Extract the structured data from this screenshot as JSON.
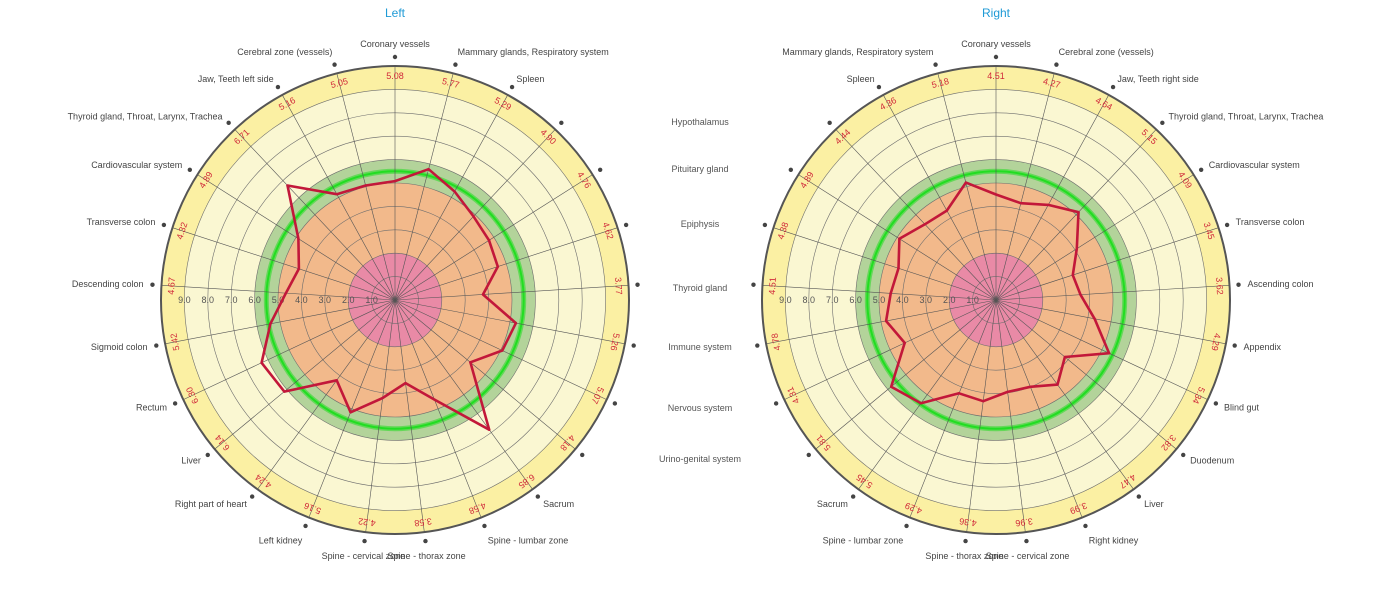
{
  "chart_data": [
    {
      "type": "polar",
      "title": "Left",
      "radial_range": [
        0,
        10
      ],
      "radial_ticks": [
        "1.0",
        "2.0",
        "3.0",
        "4.0",
        "5.0",
        "6.0",
        "7.0",
        "8.0",
        "9.0"
      ],
      "bands": [
        {
          "from": 0,
          "to": 2,
          "color": "#e98aa6"
        },
        {
          "from": 2,
          "to": 5,
          "color": "#f2b98b"
        },
        {
          "from": 5,
          "to": 6,
          "color": "#b3d39a"
        },
        {
          "from": 6,
          "to": 9,
          "color": "#faf7d2"
        },
        {
          "from": 9,
          "to": 10,
          "color": "#fbf0a3"
        }
      ],
      "reference_circle": {
        "value": 5.5,
        "color": "#22dd22"
      },
      "series": [
        {
          "color": "#c2183a",
          "categories": [
            "Coronary vessels",
            "Mammary glands, Respiratory system",
            "Spleen",
            "",
            "",
            "",
            "",
            "",
            "",
            "",
            "Sacrum",
            "Spine - lumbar zone",
            "Spine - thorax zone",
            "Spine - cervical zone",
            "Left kidney",
            "Right part of heart",
            "Liver",
            "Rectum",
            "Sigmoid colon",
            "Descending colon",
            "Transverse colon",
            "Cardiovascular system",
            "Thyroid gland, Throat, Larynx, Trachea",
            "Jaw, Teeth left side",
            "Cerebral zone (vessels)"
          ],
          "values": [
            5.08,
            5.77,
            5.29,
            4.9,
            4.76,
            4.62,
            3.77,
            5.26,
            5.07,
            4.18,
            6.85,
            4.58,
            3.58,
            4.22,
            5.16,
            4.24,
            6.14,
            6.3,
            5.42,
            4.67,
            4.32,
            4.89,
            6.71,
            5.16,
            5.05
          ],
          "value_labels": [
            "5.08",
            "5.77",
            "5.29",
            "4.90",
            "4.76",
            "4.62",
            "3.77",
            "5.26",
            "5.07",
            "4.18",
            "6.85",
            "4.58",
            "3.58",
            "4.22",
            "5.16",
            "4.24",
            "6.14",
            "6.30",
            "5.42",
            "4.67",
            "4.32",
            "4.89",
            "6.71",
            "5.16",
            "5.05"
          ]
        }
      ]
    },
    {
      "type": "polar",
      "title": "Right",
      "radial_range": [
        0,
        10
      ],
      "radial_ticks": [
        "1.0",
        "2.0",
        "3.0",
        "4.0",
        "5.0",
        "6.0",
        "7.0",
        "8.0",
        "9.0"
      ],
      "bands": [
        {
          "from": 0,
          "to": 2,
          "color": "#e98aa6"
        },
        {
          "from": 2,
          "to": 5,
          "color": "#f2b98b"
        },
        {
          "from": 5,
          "to": 6,
          "color": "#b3d39a"
        },
        {
          "from": 6,
          "to": 9,
          "color": "#faf7d2"
        },
        {
          "from": 9,
          "to": 10,
          "color": "#fbf0a3"
        }
      ],
      "reference_circle": {
        "value": 5.5,
        "color": "#22dd22"
      },
      "series": [
        {
          "color": "#c2183a",
          "categories": [
            "Coronary vessels",
            "Cerebral zone (vessels)",
            "Jaw, Teeth right side",
            "Thyroid gland, Throat, Larynx, Trachea",
            "Cardiovascular system",
            "Transverse colon",
            "Ascending colon",
            "Appendix",
            "Blind gut",
            "Duodenum",
            "Liver",
            "Right kidney",
            "Spine - cervical zone",
            "Spine - thorax zone",
            "Spine - lumbar zone",
            "Sacrum",
            "",
            "",
            "",
            "",
            "",
            "",
            "",
            "Spleen",
            "Mammary glands, Respiratory system"
          ],
          "values": [
            4.51,
            4.27,
            4.64,
            5.15,
            4.09,
            3.45,
            3.62,
            4.29,
            5.34,
            3.82,
            4.47,
            3.99,
            3.96,
            4.36,
            4.29,
            5.45,
            5.81,
            4.31,
            4.78,
            4.51,
            4.38,
            4.89,
            4.44,
            4.36,
            5.18
          ],
          "value_labels": [
            "4.51",
            "4.27",
            "4.64",
            "5.15",
            "4.09",
            "3.45",
            "3.62",
            "4.29",
            "5.34",
            "3.82",
            "4.47",
            "3.99",
            "3.96",
            "4.36",
            "4.29",
            "5.45",
            "5.81",
            "4.31",
            "4.78",
            "4.51",
            "4.38",
            "4.89",
            "4.44",
            "4.36",
            "5.18"
          ]
        }
      ]
    }
  ],
  "side_labels": [
    "Hypothalamus",
    "Pituitary gland",
    "Epiphysis",
    "Thyroid gland",
    "Immune system",
    "Nervous system",
    "Urino-genital system"
  ]
}
